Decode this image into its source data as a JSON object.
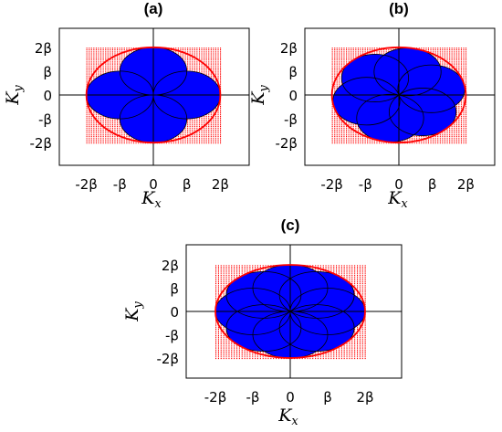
{
  "figure": {
    "panels": [
      {
        "label": "(a)",
        "x_axis_label": "K",
        "x_axis_sub": "x",
        "y_axis_label": "K",
        "y_axis_sub": "y",
        "x_ticks": [
          "-2β",
          "-β",
          "0",
          "β",
          "2β"
        ],
        "y_ticks": [
          "2β",
          "β",
          "0",
          "-β",
          "-2β"
        ],
        "circle_centers": [
          [
            1,
            0
          ],
          [
            0,
            1
          ],
          [
            -1,
            0
          ],
          [
            0,
            -1
          ]
        ]
      },
      {
        "label": "(b)",
        "x_axis_label": "K",
        "x_axis_sub": "x",
        "y_axis_label": "K",
        "y_axis_sub": "y",
        "x_ticks": [
          "-2β",
          "-β",
          "0",
          "β",
          "2β"
        ],
        "y_ticks": [
          "2β",
          "β",
          "0",
          "-β",
          "-2β"
        ],
        "circle_centers": [
          [
            0.97,
            0.26
          ],
          [
            0.26,
            0.97
          ],
          [
            -0.71,
            0.71
          ],
          [
            -0.97,
            -0.26
          ],
          [
            -0.26,
            -0.97
          ],
          [
            0.71,
            -0.71
          ]
        ]
      },
      {
        "label": "(c)",
        "x_axis_label": "K",
        "x_axis_sub": "x",
        "y_axis_label": "K",
        "y_axis_sub": "y",
        "x_ticks": [
          "-2β",
          "-β",
          "0",
          "β",
          "2β"
        ],
        "y_ticks": [
          "2β",
          "β",
          "0",
          "-β",
          "-2β"
        ],
        "circle_centers": [
          [
            1,
            0
          ],
          [
            0.71,
            0.71
          ],
          [
            0,
            1
          ],
          [
            -0.71,
            0.71
          ],
          [
            -1,
            0
          ],
          [
            -0.71,
            -0.71
          ],
          [
            0,
            -1
          ],
          [
            0.71,
            -0.71
          ]
        ]
      }
    ],
    "colors": {
      "fill": "#0000ff",
      "boundary": "#ff0000",
      "outline": "#000000",
      "grid_dots": "#ff0000"
    },
    "units": {
      "beta": 1,
      "domain": [
        -2,
        2
      ]
    }
  }
}
